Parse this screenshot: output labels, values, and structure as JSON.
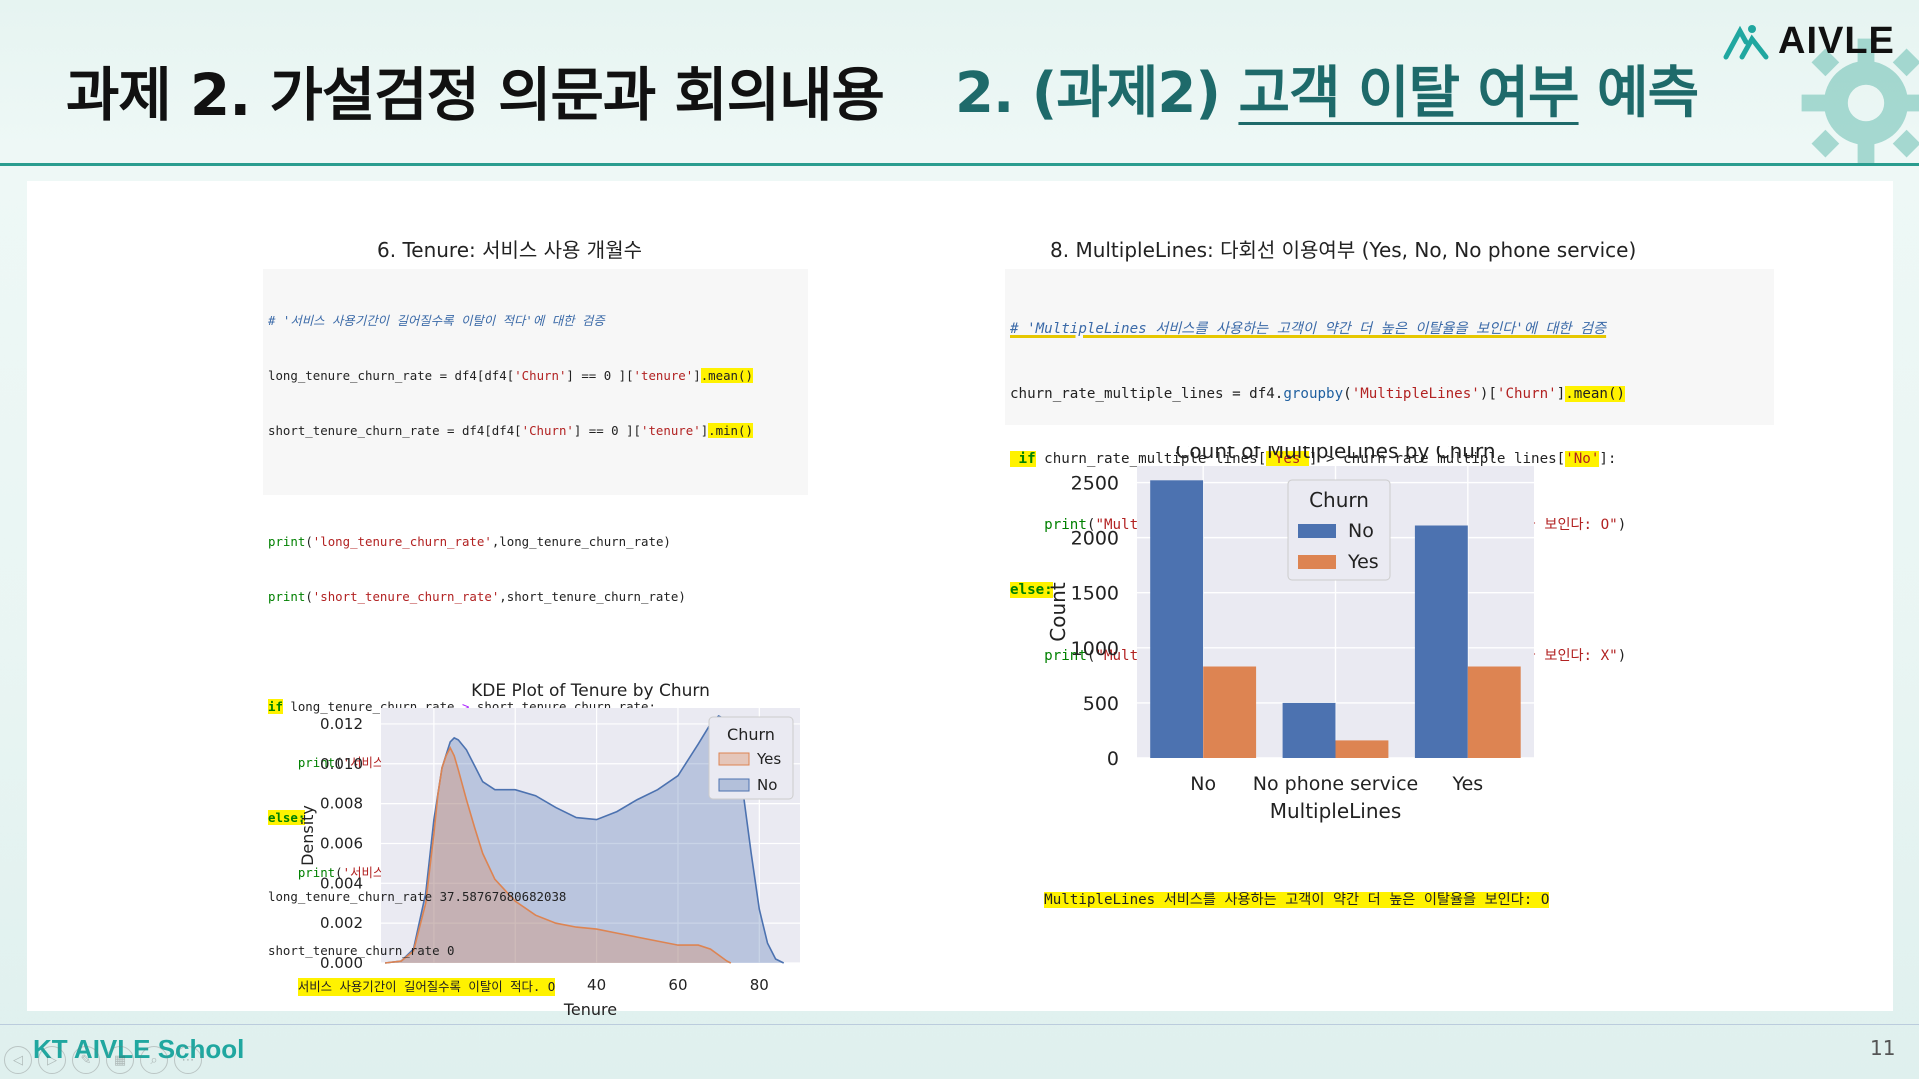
{
  "header": {
    "title_left": "과제 2. 가설검정 의문과 회의내용",
    "title_right_prefix": "2. (과제2) ",
    "title_right_underlined": "고객 이탈 여부",
    "title_right_suffix": " 예측",
    "logo_text": "AIVLE"
  },
  "left_panel": {
    "title": "6. Tenure: 서비스 사용 개월수",
    "code_lines": [
      "# '서비스 사용기간이 길어질수록 이탈이 적다'에 대한 검증",
      "long_tenure_churn_rate = df4[df4['Churn'] == 0 ]['tenure'].mean()",
      "short_tenure_churn_rate = df4[df4['Churn'] == 0 ]['tenure'].min()",
      "",
      "print('long_tenure_churn_rate',long_tenure_churn_rate)",
      "print('short_tenure_churn_rate',short_tenure_churn_rate)",
      "",
      "if long_tenure_churn_rate > short_tenure_churn_rate:",
      "    print('서비스 사용기간이 길어질수록 이탈이 적다. O')",
      "else:",
      "    print('서비스 사용기간이 길어질수록 이탈이 적다. X')"
    ],
    "output_lines": [
      "long_tenure_churn_rate 37.58767680682038",
      "short_tenure_churn_rate 0",
      "서비스 사용기간이 길어질수록 이탈이 적다. O"
    ]
  },
  "right_panel": {
    "title": "8. MultipleLines: 다회선 이용여부 (Yes, No, No phone service)",
    "code_lines": [
      "# 'MultipleLines 서비스를 사용하는 고객이 약간 더 높은 이탈율을 보인다'에 대한 검증",
      "churn_rate_multiple_lines = df4.groupby('MultipleLines')['Churn'].mean()",
      "if churn_rate_multiple_lines['Yes'] > churn_rate_multiple_lines['No']:",
      "    print(\"MultipleLines 서비스를 사용하는 고객이 약간 더 높은 이탈율을 보인다: O\")",
      "else:",
      "    print(\"MultipleLines 서비스를 사용하는 고객이 약간 더 높은 이탈율을 보인다: X\")"
    ],
    "output_line": "MultipleLines 서비스를 사용하는 고객이 약간 더 높은 이탈율을 보인다: O"
  },
  "footer": {
    "school": "KT AIVLE School",
    "page": "11"
  },
  "colors": {
    "no": "#4c72b0",
    "yes": "#dd8452",
    "accent": "#1e6a6a",
    "highlight": "#fff200"
  },
  "chart_data": [
    {
      "type": "area",
      "title": "KDE Plot of Tenure by Churn",
      "xlabel": "Tenure",
      "ylabel": "Density",
      "xlim": [
        -13,
        90
      ],
      "ylim": [
        0,
        0.0128
      ],
      "xticks": [
        0,
        20,
        40,
        60,
        80
      ],
      "yticks": [
        "0.000",
        "0.002",
        "0.004",
        "0.006",
        "0.008",
        "0.010",
        "0.012"
      ],
      "legend_title": "Churn",
      "legend_position": "top-right",
      "grid": true,
      "series": [
        {
          "name": "Yes",
          "color": "#dd8452",
          "x": [
            -12,
            -8,
            -5,
            -2,
            0,
            1,
            2,
            3,
            4,
            5,
            6,
            8,
            10,
            12,
            15,
            20,
            25,
            30,
            35,
            40,
            45,
            50,
            55,
            60,
            65,
            68,
            70,
            72,
            73
          ],
          "y": [
            0,
            0.0001,
            0.0006,
            0.003,
            0.0065,
            0.0085,
            0.0098,
            0.0104,
            0.0108,
            0.0104,
            0.0097,
            0.0082,
            0.0068,
            0.0055,
            0.0042,
            0.0031,
            0.0024,
            0.002,
            0.0018,
            0.0017,
            0.0015,
            0.0013,
            0.0011,
            0.0009,
            0.0009,
            0.0007,
            0.0004,
            0.0001,
            0
          ]
        },
        {
          "name": "No",
          "color": "#4c72b0",
          "x": [
            -12,
            -8,
            -5,
            -2,
            0,
            2,
            4,
            5,
            6,
            8,
            10,
            12,
            15,
            20,
            25,
            30,
            35,
            40,
            45,
            50,
            55,
            60,
            65,
            68,
            70,
            72,
            74,
            76,
            78,
            80,
            82,
            84,
            86
          ],
          "y": [
            0,
            0.0001,
            0.0007,
            0.0035,
            0.0072,
            0.0098,
            0.0111,
            0.0113,
            0.0112,
            0.0107,
            0.0099,
            0.0091,
            0.0087,
            0.0087,
            0.0084,
            0.0078,
            0.0073,
            0.0072,
            0.0076,
            0.0082,
            0.0087,
            0.0094,
            0.011,
            0.012,
            0.0124,
            0.0122,
            0.011,
            0.0086,
            0.0055,
            0.0027,
            0.001,
            0.0002,
            0
          ]
        }
      ]
    },
    {
      "type": "bar",
      "title": "Count of MultipleLines by Churn",
      "xlabel": "MultipleLines",
      "ylabel": "Count",
      "categories": [
        "No",
        "No phone service",
        "Yes"
      ],
      "ylim": [
        0,
        2650
      ],
      "yticks": [
        0,
        500,
        1000,
        1500,
        2000,
        2500
      ],
      "legend_title": "Churn",
      "legend_position": "top-center",
      "grid": true,
      "series": [
        {
          "name": "No",
          "color": "#4c72b0",
          "values": [
            2520,
            500,
            2110
          ]
        },
        {
          "name": "Yes",
          "color": "#dd8452",
          "values": [
            830,
            160,
            830
          ]
        }
      ]
    }
  ]
}
